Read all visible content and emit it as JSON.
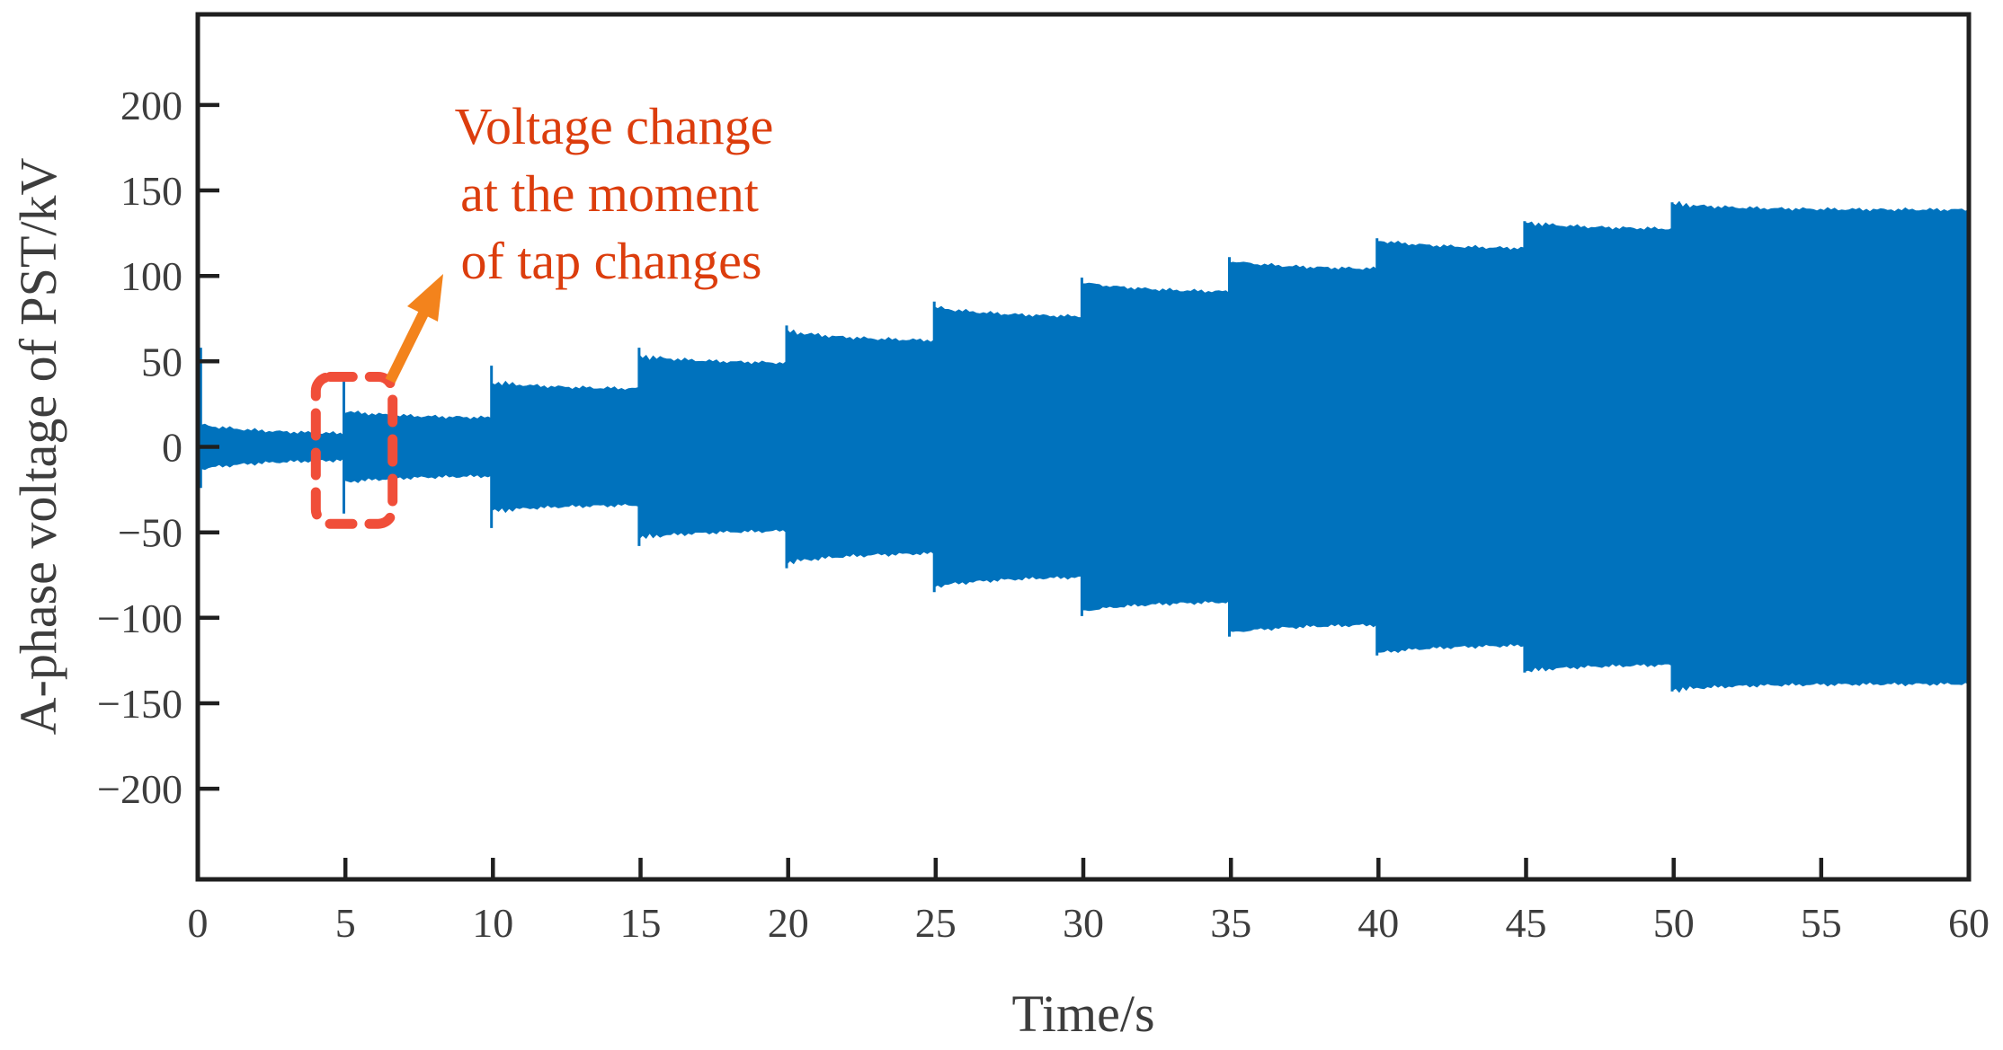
{
  "figure": {
    "background": "#ffffff"
  },
  "chart_data": {
    "type": "area",
    "description": "Oscillatory A-phase voltage waveform of a PST shown as a symmetric envelope that steps up in amplitude at each tap change every 5 seconds",
    "xlabel": "Time/s",
    "ylabel": "A-phase voltage of PST/kV",
    "xlim": [
      0,
      60
    ],
    "ylim": [
      -253,
      253
    ],
    "xticks": [
      0,
      5,
      10,
      15,
      20,
      25,
      30,
      35,
      40,
      45,
      50,
      55,
      60
    ],
    "yticks": [
      -200,
      -150,
      -100,
      -50,
      0,
      50,
      100,
      150,
      200
    ],
    "grid": false,
    "legend": null,
    "series_color": "#0072BD",
    "axis_color": "#1f1f1f",
    "tick_label_color": "#3d3d3d",
    "envelope_segments": [
      {
        "t_start": 0,
        "t_end": 4.95,
        "peak_kV": 13,
        "settle_kV": 7
      },
      {
        "t_start": 4.95,
        "t_end": 9.95,
        "peak_kV": 20.5,
        "settle_kV": 16.5
      },
      {
        "t_start": 9.95,
        "t_end": 14.95,
        "peak_kV": 37.5,
        "settle_kV": 33.5
      },
      {
        "t_start": 14.95,
        "t_end": 19.95,
        "peak_kV": 53,
        "settle_kV": 48.5
      },
      {
        "t_start": 19.95,
        "t_end": 24.95,
        "peak_kV": 67.5,
        "settle_kV": 61.5
      },
      {
        "t_start": 24.95,
        "t_end": 29.95,
        "peak_kV": 81.5,
        "settle_kV": 75.5
      },
      {
        "t_start": 29.95,
        "t_end": 34.95,
        "peak_kV": 96,
        "settle_kV": 90
      },
      {
        "t_start": 34.95,
        "t_end": 39.95,
        "peak_kV": 108.5,
        "settle_kV": 103.5
      },
      {
        "t_start": 39.95,
        "t_end": 44.95,
        "peak_kV": 120.5,
        "settle_kV": 115.5
      },
      {
        "t_start": 44.95,
        "t_end": 49.95,
        "peak_kV": 131,
        "settle_kV": 127
      },
      {
        "t_start": 49.95,
        "t_end": 60,
        "peak_kV": 142,
        "settle_kV": 138.5
      }
    ],
    "tap_change_spikes_kV": [
      {
        "t": 4.95,
        "kV": 39
      },
      {
        "t": 9.95,
        "kV": 47.5
      },
      {
        "t": 14.95,
        "kV": 58
      },
      {
        "t": 19.95,
        "kV": 71
      },
      {
        "t": 24.95,
        "kV": 85
      },
      {
        "t": 29.95,
        "kV": 99
      },
      {
        "t": 34.95,
        "kV": 111
      },
      {
        "t": 39.95,
        "kV": 122
      },
      {
        "t": 44.95,
        "kV": 132
      },
      {
        "t": 49.95,
        "kV": 143
      }
    ],
    "startup_spike": {
      "t": 0.1,
      "up_kV": 58,
      "down_kV": -24
    },
    "annotation": {
      "lines": [
        "Voltage change",
        "at the moment",
        "of tap changes"
      ],
      "text_color": "#DC3D0D",
      "arrow_color": "#F3831C",
      "highlight_box": {
        "t_min": 4.0,
        "t_max": 6.6,
        "v_min_kV": -45,
        "v_max_kV": 41,
        "color": "#F04E39"
      }
    }
  }
}
